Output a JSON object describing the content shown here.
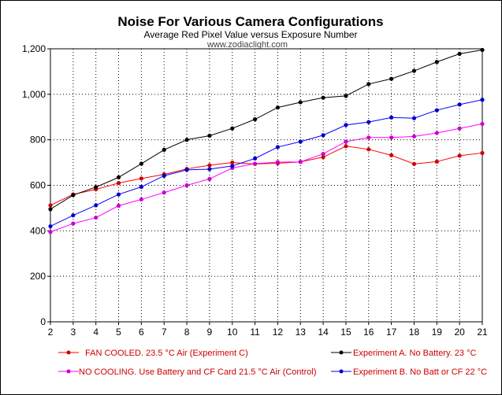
{
  "chart_data": {
    "type": "line",
    "title": "Noise For Various Camera Configurations",
    "subtitle": "Average Red Pixel Value versus Exposure Number",
    "watermark": "www.zodiaclight.com",
    "xlabel": "",
    "ylabel": "",
    "x": [
      2,
      3,
      4,
      5,
      6,
      7,
      8,
      9,
      10,
      11,
      12,
      13,
      14,
      15,
      16,
      17,
      18,
      19,
      20,
      21
    ],
    "xlim": [
      2,
      21
    ],
    "ylim": [
      0,
      1200
    ],
    "yticks": [
      0,
      200,
      400,
      600,
      800,
      1000,
      1200
    ],
    "ytick_labels": [
      "0",
      "200",
      "400",
      "600",
      "800",
      "1,000",
      "1,200"
    ],
    "grid": true,
    "legend_position": "bottom",
    "series": [
      {
        "name": "FAN COOLED.  23.5 °C Air (Experiment C)",
        "color": "#ff0000",
        "marker_color": "#cc0000",
        "values": [
          512,
          560,
          582,
          610,
          630,
          648,
          672,
          688,
          700,
          694,
          697,
          703,
          724,
          772,
          758,
          732,
          694,
          704,
          730,
          742
        ]
      },
      {
        "name": "NO COOLING.  Use Battery and CF Card 21.5 °C Air (Control)",
        "color": "#ff00ff",
        "marker_color": "#cc00cc",
        "values": [
          395,
          432,
          458,
          510,
          538,
          568,
          600,
          628,
          676,
          695,
          702,
          703,
          738,
          792,
          810,
          810,
          815,
          830,
          850,
          870
        ]
      },
      {
        "name": "Experiment A. No Battery.  23 °C",
        "color": "#000000",
        "marker_color": "#000000",
        "values": [
          495,
          557,
          592,
          635,
          695,
          756,
          800,
          818,
          850,
          890,
          942,
          965,
          985,
          993,
          1045,
          1068,
          1103,
          1142,
          1178,
          1195
        ]
      },
      {
        "name": "Experiment B. No Batt or CF 22 °C",
        "color": "#0000ff",
        "marker_color": "#0000cc",
        "values": [
          420,
          468,
          512,
          560,
          593,
          642,
          668,
          671,
          685,
          718,
          768,
          792,
          820,
          865,
          878,
          898,
          895,
          930,
          955,
          976
        ]
      }
    ]
  }
}
